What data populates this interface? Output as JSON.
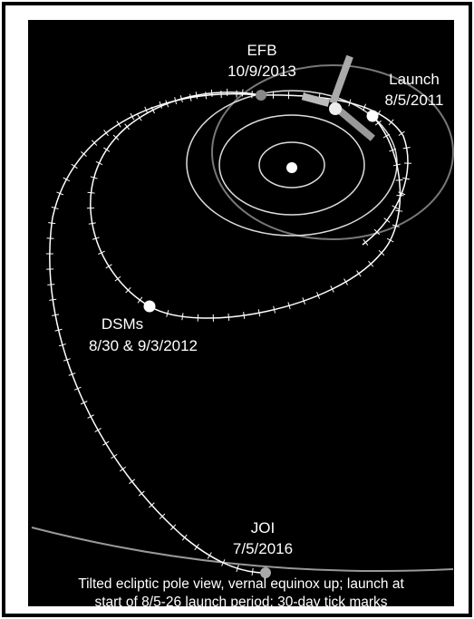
{
  "labels": {
    "efb": {
      "name": "EFB",
      "date": "10/9/2013"
    },
    "launch": {
      "name": "Launch",
      "date": "8/5/2011"
    },
    "dsm": {
      "name": "DSMs",
      "date": "8/30 & 9/3/2012"
    },
    "joi": {
      "name": "JOI",
      "date": "7/5/2016"
    }
  },
  "caption": [
    "Tilted ecliptic pole view, vernal equinox up; launch at",
    "start of 8/5-26 launch period; 30-day tick marks"
  ]
}
